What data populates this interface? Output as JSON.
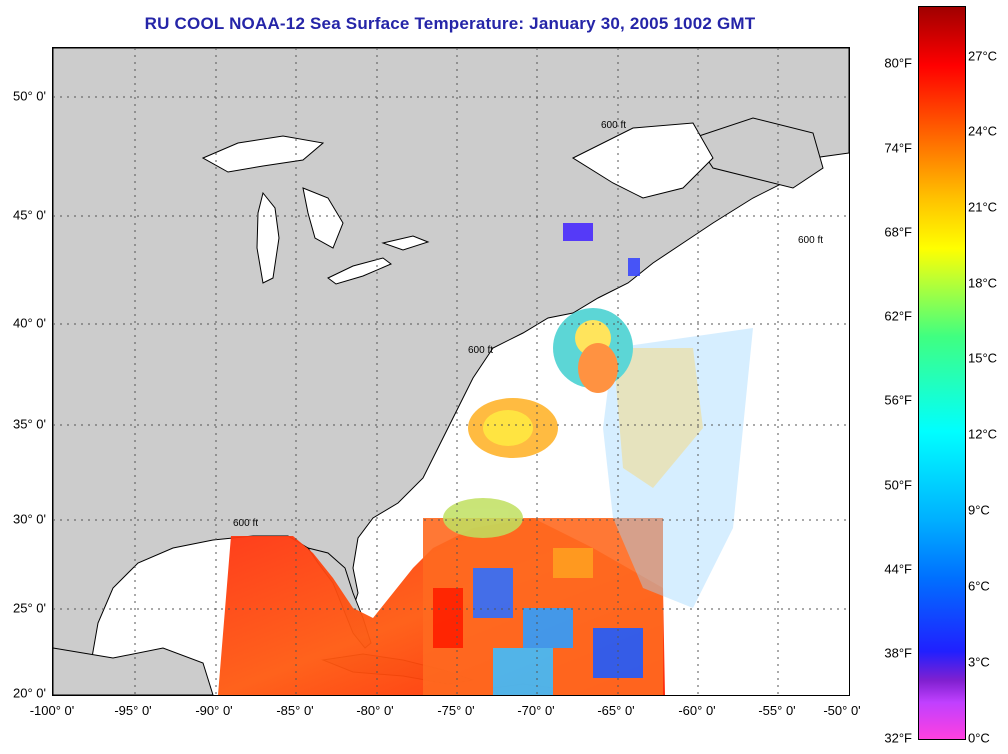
{
  "title": "RU COOL  NOAA-12  Sea Surface Temperature:  January 30, 2005 1002 GMT",
  "map": {
    "region": "US East Coast, Gulf of Mexico and western North Atlantic",
    "land_color": "#cccccc",
    "no_data_color": "#ffffff",
    "grid": "dotted",
    "contour_label": "600 ft",
    "longitude_ticks": [
      "-100° 0'",
      "-95° 0'",
      "-90° 0'",
      "-85° 0'",
      "-80° 0'",
      "-75° 0'",
      "-70° 0'",
      "-65° 0'",
      "-60° 0'",
      "-55° 0'",
      "-50° 0'"
    ],
    "latitude_ticks": [
      "50° 0'",
      "45° 0'",
      "40° 0'",
      "35° 0'",
      "30° 0'",
      "25° 0'",
      "20° 0'"
    ]
  },
  "colorbar": {
    "celsius_labels": [
      "27°C",
      "24°C",
      "21°C",
      "18°C",
      "15°C",
      "12°C",
      "9°C",
      "6°C",
      "3°C",
      "0°C"
    ],
    "fahrenheit_labels": [
      "80°F",
      "74°F",
      "68°F",
      "62°F",
      "56°F",
      "50°F",
      "44°F",
      "38°F",
      "32°F"
    ],
    "colors": [
      "#ff40e0",
      "#8020d0",
      "#2020ff",
      "#00b0ff",
      "#00ffff",
      "#40ff80",
      "#ffff00",
      "#ff8000",
      "#ff0000",
      "#a00000"
    ]
  }
}
